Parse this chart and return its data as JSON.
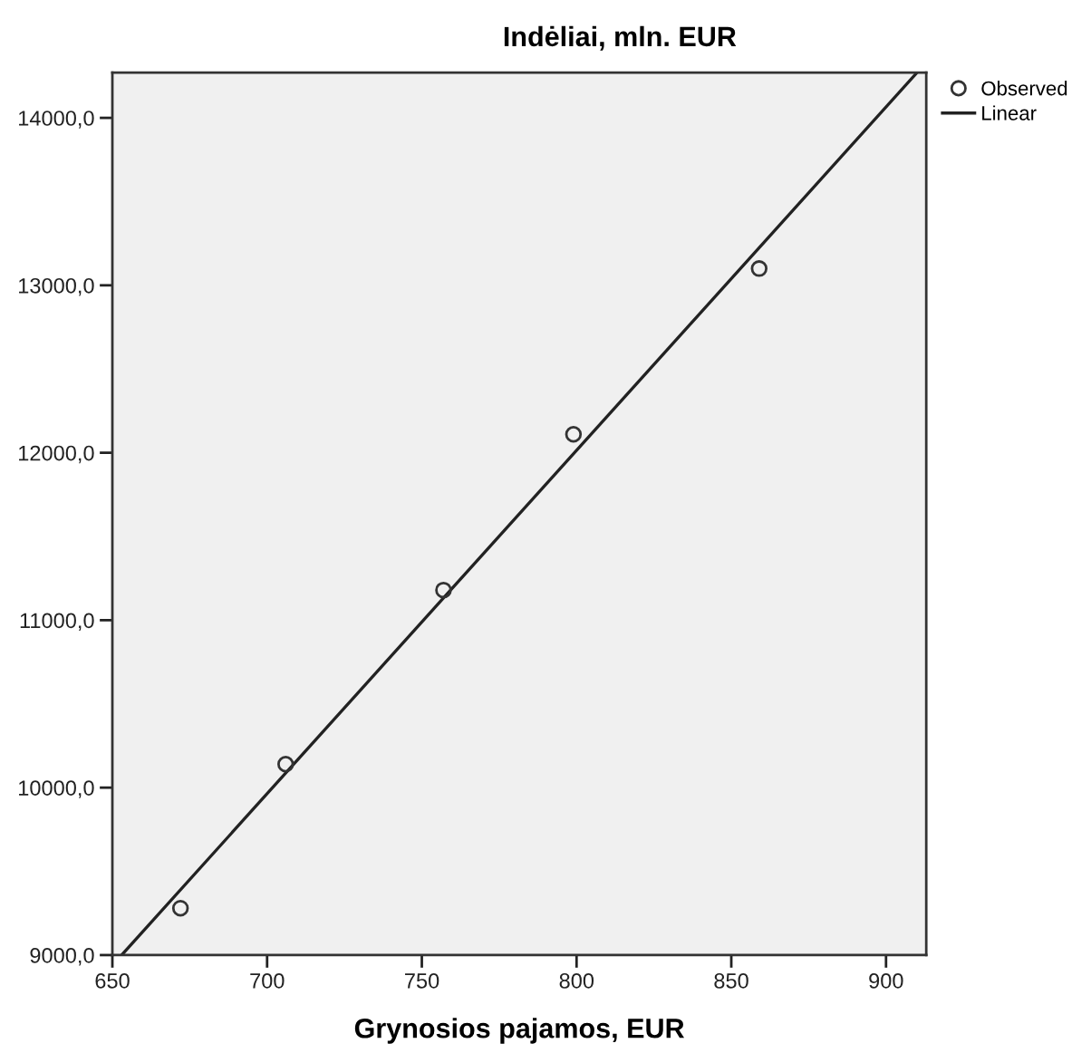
{
  "chart_data": {
    "type": "scatter",
    "title": "Indėliai, mln. EUR",
    "xlabel": "Grynosios pajamos, EUR",
    "series": [
      {
        "name": "Observed",
        "marker": "circle",
        "color": "#333333",
        "x": [
          672,
          706,
          757,
          799,
          859
        ],
        "values": [
          9280,
          10140,
          11180,
          12110,
          13100
        ]
      },
      {
        "name": "Linear",
        "type": "line",
        "marker": "none",
        "line_style": "solid",
        "color": "#222222",
        "x": [
          653,
          910
        ],
        "values": [
          9000,
          14270
        ]
      }
    ],
    "xlim": [
      650,
      913
    ],
    "ylim": [
      9000,
      14270
    ],
    "xticks": [
      650,
      700,
      750,
      800,
      850,
      900
    ],
    "yticks": [
      {
        "value": 9000,
        "label": "9000,0"
      },
      {
        "value": 10000,
        "label": "10000,0"
      },
      {
        "value": 11000,
        "label": "11000,0"
      },
      {
        "value": 12000,
        "label": "12000,0"
      },
      {
        "value": 13000,
        "label": "13000,0"
      },
      {
        "value": 14000,
        "label": "14000,0"
      }
    ],
    "grid": false,
    "legend": "top right"
  }
}
